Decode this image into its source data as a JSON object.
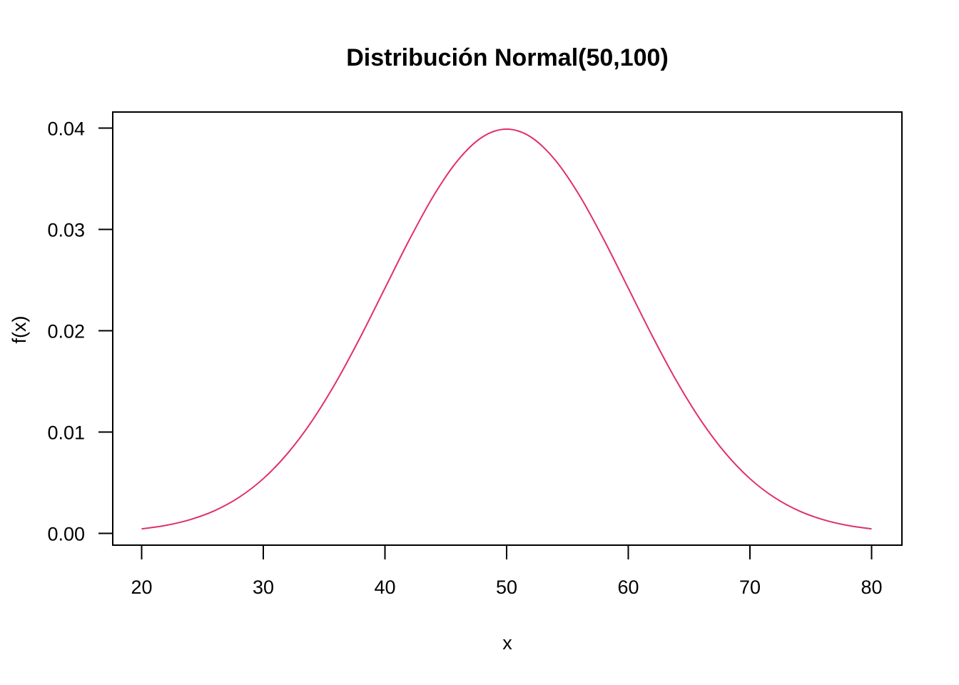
{
  "chart_data": {
    "type": "line",
    "title": "Distribución Normal(50,100)",
    "xlabel": "x",
    "ylabel": "f(x)",
    "xlim": [
      20,
      80
    ],
    "ylim": [
      0,
      0.04
    ],
    "x_ticks": [
      "20",
      "30",
      "40",
      "50",
      "60",
      "70",
      "80"
    ],
    "y_ticks": [
      "0.00",
      "0.01",
      "0.02",
      "0.03",
      "0.04"
    ],
    "series": [
      {
        "color": "#e0306a",
        "x": [
          20,
          22,
          24,
          26,
          28,
          30,
          32,
          34,
          36,
          38,
          40,
          42,
          44,
          46,
          48,
          50,
          52,
          54,
          56,
          58,
          60,
          62,
          64,
          66,
          68,
          70,
          72,
          74,
          76,
          78,
          80
        ],
        "y": [
          0.00044,
          0.00079,
          0.00136,
          0.00224,
          0.00355,
          0.0054,
          0.0079,
          0.01109,
          0.01497,
          0.01942,
          0.0242,
          0.02897,
          0.03333,
          0.03683,
          0.03911,
          0.03989,
          0.03911,
          0.03683,
          0.03333,
          0.02897,
          0.0242,
          0.01942,
          0.01497,
          0.01109,
          0.0079,
          0.0054,
          0.00355,
          0.00224,
          0.00136,
          0.00079,
          0.00044
        ]
      }
    ],
    "grid": false,
    "legend": "none"
  }
}
